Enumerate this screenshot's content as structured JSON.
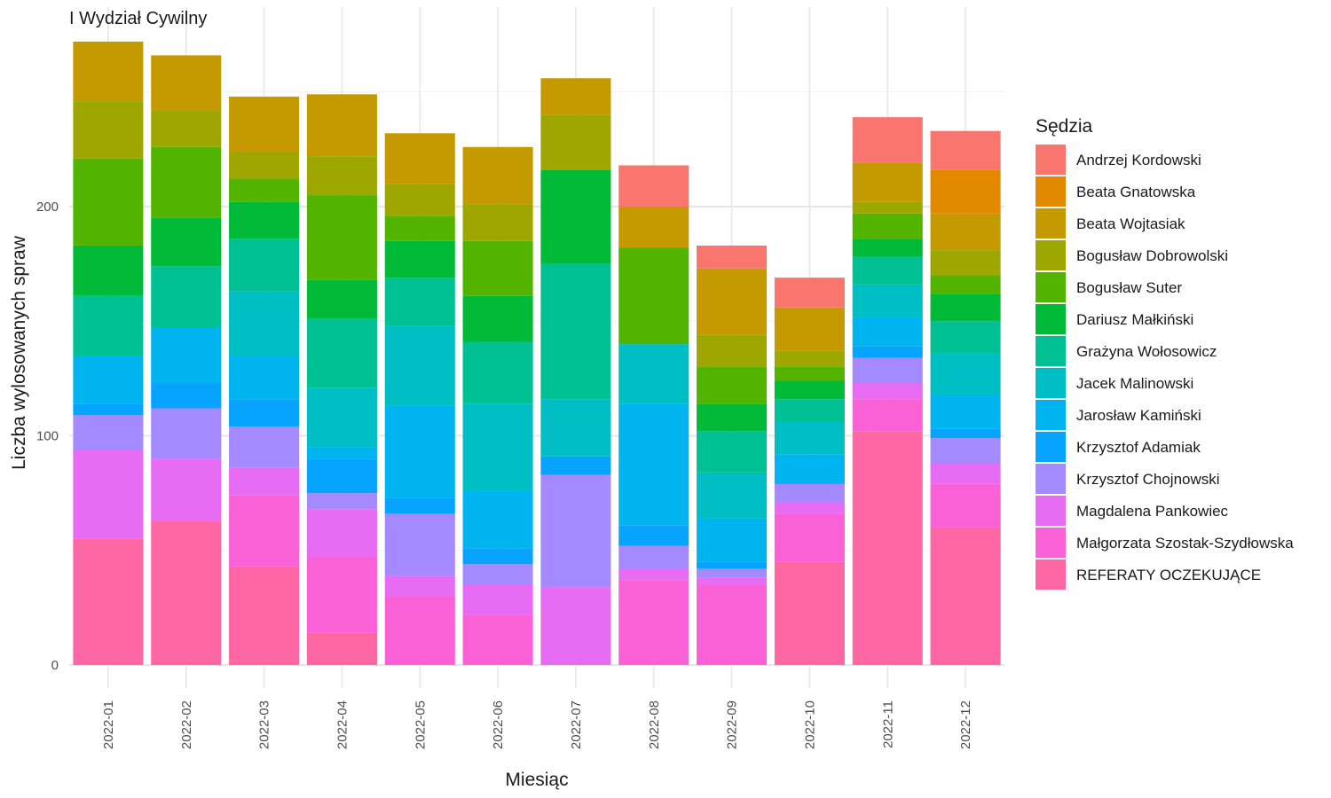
{
  "chart_data": {
    "type": "bar",
    "stacked": true,
    "title": "I Wydział Cywilny",
    "xlabel": "Miesiąc",
    "ylabel": "Liczba wylosowanych spraw",
    "ylim": [
      -10,
      272
    ],
    "yticks": [
      0,
      100,
      200
    ],
    "grid": true,
    "legend_title": "Sędzia",
    "legend_position": "right",
    "categories": [
      "2022-01",
      "2022-02",
      "2022-03",
      "2022-04",
      "2022-05",
      "2022-06",
      "2022-07",
      "2022-08",
      "2022-09",
      "2022-10",
      "2022-11",
      "2022-12"
    ],
    "series": [
      {
        "name": "REFERATY OCZEKUJĄCE",
        "color": "#FF67A4",
        "values": [
          55,
          63,
          43,
          14,
          0,
          0,
          0,
          0,
          0,
          45,
          102,
          60
        ]
      },
      {
        "name": "Małgorzata Szostak-Szydłowska",
        "color": "#FB61D7",
        "values": [
          0,
          0,
          31,
          33,
          30,
          22,
          0,
          37,
          35,
          21,
          14,
          19
        ]
      },
      {
        "name": "Magdalena Pankowiec",
        "color": "#E76BF3",
        "values": [
          39,
          27,
          12,
          21,
          9,
          13,
          34,
          5,
          3,
          5,
          7,
          9
        ]
      },
      {
        "name": "Krzysztof Chojnowski",
        "color": "#A58AFF",
        "values": [
          15,
          22,
          18,
          7,
          27,
          9,
          49,
          10,
          4,
          8,
          11,
          11
        ]
      },
      {
        "name": "Krzysztof Adamiak",
        "color": "#06A4FF",
        "values": [
          5,
          11,
          12,
          15,
          7,
          7,
          8,
          9,
          3,
          1,
          5,
          4
        ]
      },
      {
        "name": "Jarosław Kamiński",
        "color": "#00B4EF",
        "values": [
          21,
          24,
          19,
          5,
          40,
          25,
          0,
          53,
          19,
          12,
          13,
          15
        ]
      },
      {
        "name": "Jacek Malinowski",
        "color": "#00BFC4",
        "values": [
          0,
          0,
          28,
          26,
          35,
          38,
          25,
          26,
          20,
          14,
          14,
          18
        ]
      },
      {
        "name": "Grażyna Wołosowicz",
        "color": "#00C094",
        "values": [
          26,
          27,
          23,
          30,
          21,
          27,
          59,
          0,
          18,
          10,
          12,
          14
        ]
      },
      {
        "name": "Dariusz Małkiński",
        "color": "#00BA38",
        "values": [
          22,
          21,
          16,
          17,
          16,
          20,
          41,
          0,
          12,
          8,
          8,
          12
        ]
      },
      {
        "name": "Bogusław Suter",
        "color": "#53B400",
        "values": [
          38,
          31,
          10,
          37,
          11,
          24,
          0,
          42,
          16,
          6,
          11,
          8
        ]
      },
      {
        "name": "Bogusław Dobrowolski",
        "color": "#9DA700",
        "values": [
          25,
          16,
          12,
          17,
          14,
          16,
          24,
          0,
          14,
          7,
          5,
          11
        ]
      },
      {
        "name": "Beata Wojtasiak",
        "color": "#C49A00",
        "values": [
          26,
          24,
          24,
          27,
          22,
          25,
          16,
          18,
          29,
          19,
          17,
          16
        ]
      },
      {
        "name": "Beata Gnatowska",
        "color": "#E38900",
        "values": [
          0,
          0,
          0,
          0,
          0,
          0,
          0,
          0,
          0,
          0,
          0,
          19
        ]
      },
      {
        "name": "Andrzej Kordowski",
        "color": "#F8766D",
        "values": [
          0,
          0,
          0,
          0,
          0,
          0,
          0,
          18,
          10,
          13,
          20,
          17
        ]
      }
    ],
    "legend_order": [
      "Andrzej Kordowski",
      "Beata Gnatowska",
      "Beata Wojtasiak",
      "Bogusław Dobrowolski",
      "Bogusław Suter",
      "Dariusz Małkiński",
      "Grażyna Wołosowicz",
      "Jacek Malinowski",
      "Jarosław Kamiński",
      "Krzysztof Adamiak",
      "Krzysztof Chojnowski",
      "Magdalena Pankowiec",
      "Małgorzata Szostak-Szydłowska",
      "REFERATY OCZEKUJĄCE"
    ]
  }
}
